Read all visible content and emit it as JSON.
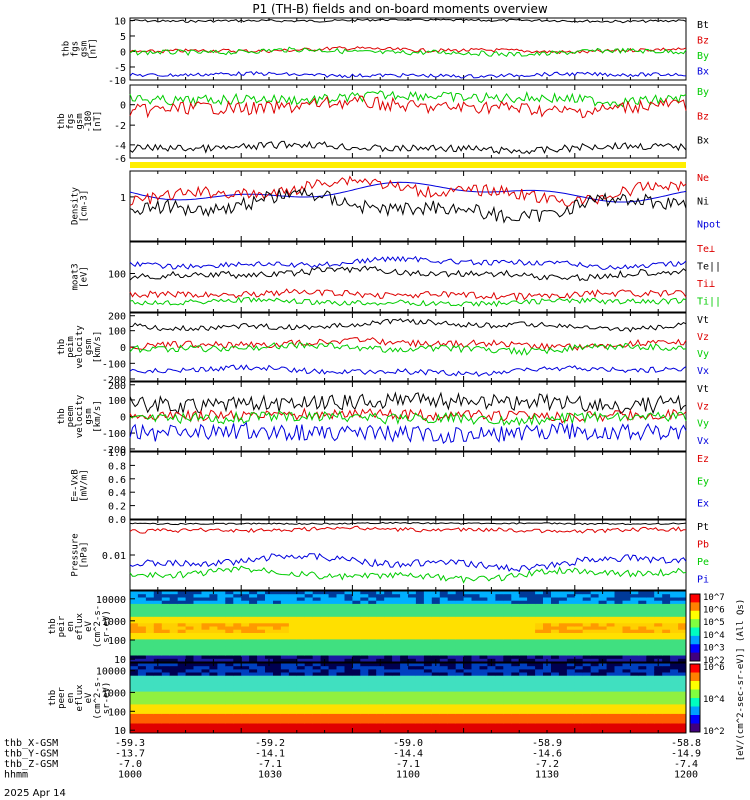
{
  "title": "P1 (TH-B) fields and on-board moments overview",
  "date_label": "2025 Apr 14",
  "time_axis": {
    "rows": [
      {
        "label": "thb_X-GSM",
        "values": [
          "-59.3",
          "-59.2",
          "-59.0",
          "-58.9",
          "-58.8"
        ]
      },
      {
        "label": "thb_Y-GSM",
        "values": [
          "-13.7",
          "-14.1",
          "-14.4",
          "-14.6",
          "-14.9"
        ]
      },
      {
        "label": "thb_Z-GSM",
        "values": [
          "-7.0",
          "-7.1",
          "-7.1",
          "-7.2",
          "-7.4"
        ]
      },
      {
        "label": "hhmm",
        "values": [
          "1000",
          "1030",
          "1100",
          "1130",
          "1200"
        ]
      }
    ]
  },
  "colorbar": {
    "label": "[eV/(cm^2-sec-sr-eV)] (All Qs)",
    "ticks_top": [
      "10^7",
      "10^6",
      "10^5",
      "10^4",
      "10^3",
      "10^2"
    ],
    "ticks_bottom": [
      "10^6",
      "10^4",
      "10^2"
    ]
  },
  "panels": [
    {
      "id": "fgs",
      "ylabel": [
        "thb",
        "fgs",
        "gsm",
        "[nT]"
      ],
      "yticks": [
        "10",
        "5",
        "0",
        "-5",
        "-10"
      ],
      "legend": [
        {
          "t": "Bt",
          "c": "#000000"
        },
        {
          "t": "Bz",
          "c": "#dd0000"
        },
        {
          "t": "By",
          "c": "#00cc00"
        },
        {
          "t": "Bx",
          "c": "#0000dd"
        }
      ]
    },
    {
      "id": "fgl",
      "ylabel": [
        "thb",
        "fgs",
        "gsm",
        "-180",
        "[nT]"
      ],
      "yticks": [
        "0",
        "-2",
        "-4",
        "-6"
      ],
      "legend": [
        {
          "t": "By",
          "c": "#00cc00"
        },
        {
          "t": "Bz",
          "c": "#dd0000"
        },
        {
          "t": "Bx",
          "c": "#000000"
        }
      ]
    },
    {
      "id": "density",
      "ylabel": [
        "Density",
        "[cm-3]"
      ],
      "yticks": [
        "1"
      ],
      "legend": [
        {
          "t": "Ne",
          "c": "#dd0000"
        },
        {
          "t": "Ni",
          "c": "#000000"
        },
        {
          "t": "Npot",
          "c": "#0000dd"
        }
      ]
    },
    {
      "id": "temp",
      "ylabel": [
        "moat3",
        "[eV]"
      ],
      "yticks": [
        "100"
      ],
      "legend": [
        {
          "t": "Te⊥",
          "c": "#dd0000"
        },
        {
          "t": "Te||",
          "c": "#000000"
        },
        {
          "t": "Ti⊥",
          "c": "#dd0000"
        },
        {
          "t": "Ti||",
          "c": "#00cc00"
        }
      ]
    },
    {
      "id": "veli",
      "ylabel": [
        "thb",
        "peim",
        "velocity",
        "gsm",
        "[km/s]"
      ],
      "yticks": [
        "200",
        "100",
        "0",
        "-100",
        "-200"
      ],
      "legend": [
        {
          "t": "Vt",
          "c": "#000000"
        },
        {
          "t": "Vz",
          "c": "#dd0000"
        },
        {
          "t": "Vy",
          "c": "#00cc00"
        },
        {
          "t": "Vx",
          "c": "#0000dd"
        }
      ]
    },
    {
      "id": "vele",
      "ylabel": [
        "thb",
        "peem",
        "velocity",
        "gsm",
        "[km/s]"
      ],
      "yticks": [
        "200",
        "100",
        "0",
        "-100",
        "-200"
      ],
      "legend": [
        {
          "t": "Vt",
          "c": "#000000"
        },
        {
          "t": "Vz",
          "c": "#dd0000"
        },
        {
          "t": "Vy",
          "c": "#00cc00"
        },
        {
          "t": "Vx",
          "c": "#0000dd"
        }
      ]
    },
    {
      "id": "efield",
      "ylabel": [
        "E=-VxB",
        "[mV/m]"
      ],
      "yticks": [
        "1.0",
        "0.8",
        "0.6",
        "0.4",
        "0.2",
        "0.0"
      ],
      "legend": [
        {
          "t": "Ez",
          "c": "#dd0000"
        },
        {
          "t": "Ey",
          "c": "#00cc00"
        },
        {
          "t": "Ex",
          "c": "#0000dd"
        }
      ]
    },
    {
      "id": "pressure",
      "ylabel": [
        "Pressure",
        "[nPa]"
      ],
      "yticks": [
        "0.01"
      ],
      "legend": [
        {
          "t": "Pt",
          "c": "#000000"
        },
        {
          "t": "Pb",
          "c": "#dd0000"
        },
        {
          "t": "Pe",
          "c": "#00cc00"
        },
        {
          "t": "Pi",
          "c": "#0000dd"
        }
      ]
    },
    {
      "id": "eflux_i",
      "ylabel": [
        "thb",
        "peir",
        "en",
        "eflux",
        "eV",
        "(cm^2-s-",
        "sr-eV)"
      ],
      "yticks": [
        "10000",
        "1000",
        "100",
        "10"
      ],
      "legend": []
    },
    {
      "id": "eflux_e",
      "ylabel": [
        "thb",
        "peer",
        "en",
        "eflux",
        "eV",
        "(cm^2-s-",
        "sr-eV)"
      ],
      "yticks": [
        "10000",
        "1000",
        "100",
        "10"
      ],
      "legend": []
    }
  ],
  "chart_data": {
    "type": "line",
    "title": "P1 (TH-B) fields and on-board moments overview",
    "x": [
      "1000",
      "1030",
      "1100",
      "1130",
      "1200"
    ],
    "series": [
      {
        "name": "Bt",
        "values": [
          9,
          10,
          10,
          10,
          9
        ]
      },
      {
        "name": "Bz",
        "values": [
          0,
          0,
          0,
          0,
          0
        ]
      },
      {
        "name": "By",
        "values": [
          -1,
          -1,
          -1,
          -1,
          -1
        ]
      },
      {
        "name": "Bx",
        "values": [
          -9,
          -9,
          -9,
          -9,
          -9
        ]
      },
      {
        "name": "Ne",
        "values": [
          1.0,
          1.5,
          1.2,
          1.3,
          0.5
        ]
      },
      {
        "name": "Ni",
        "values": [
          0.6,
          0.9,
          0.8,
          0.9,
          0.3
        ]
      },
      {
        "name": "Npot",
        "values": [
          1.0,
          1.8,
          1.0,
          1.2,
          0.8
        ]
      },
      {
        "name": "Vt",
        "values": [
          130,
          170,
          140,
          160,
          160
        ]
      },
      {
        "name": "Vx",
        "values": [
          -130,
          -100,
          -120,
          -150,
          -110
        ]
      },
      {
        "name": "Pt",
        "values": [
          0.05,
          0.05,
          0.05,
          0.05,
          0.05
        ]
      },
      {
        "name": "Pi",
        "values": [
          0.004,
          0.008,
          0.008,
          0.012,
          0.006
        ]
      }
    ]
  }
}
